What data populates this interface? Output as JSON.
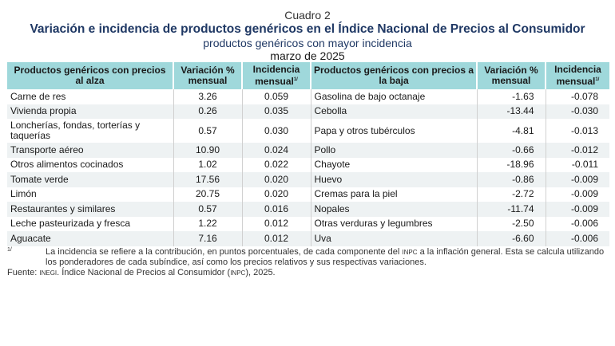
{
  "header": {
    "cuadro": "Cuadro 2",
    "title": "Variación e incidencia de productos genéricos en el Índice Nacional de Precios al Consumidor",
    "subtitle": "productos genéricos con mayor incidencia",
    "date": "marzo de 2025"
  },
  "columns": {
    "up_product": "Productos genéricos con precios al alza",
    "up_variation": "Variación % mensual",
    "up_incidence": "Incidencia mensual",
    "down_product": "Productos genéricos con precios a la baja",
    "down_variation": "Variación % mensual",
    "down_incidence": "Incidencia mensual",
    "footnote_mark": "1/"
  },
  "rows": [
    {
      "up": "Carne de res",
      "up_var": "3.26",
      "up_inc": "0.059",
      "down": "Gasolina de bajo octanaje",
      "down_var": "-1.63",
      "down_inc": "-0.078"
    },
    {
      "up": "Vivienda propia",
      "up_var": "0.26",
      "up_inc": "0.035",
      "down": "Cebolla",
      "down_var": "-13.44",
      "down_inc": "-0.030"
    },
    {
      "up": "Loncherías, fondas, torterías y taquerías",
      "up_var": "0.57",
      "up_inc": "0.030",
      "down": "Papa y otros tubérculos",
      "down_var": "-4.81",
      "down_inc": "-0.013"
    },
    {
      "up": "Transporte aéreo",
      "up_var": "10.90",
      "up_inc": "0.024",
      "down": "Pollo",
      "down_var": "-0.66",
      "down_inc": "-0.012"
    },
    {
      "up": "Otros alimentos cocinados",
      "up_var": "1.02",
      "up_inc": "0.022",
      "down": "Chayote",
      "down_var": "-18.96",
      "down_inc": "-0.011"
    },
    {
      "up": "Tomate verde",
      "up_var": "17.56",
      "up_inc": "0.020",
      "down": "Huevo",
      "down_var": "-0.86",
      "down_inc": "-0.009"
    },
    {
      "up": "Limón",
      "up_var": "20.75",
      "up_inc": "0.020",
      "down": "Cremas para la piel",
      "down_var": "-2.72",
      "down_inc": "-0.009"
    },
    {
      "up": "Restaurantes y similares",
      "up_var": "0.57",
      "up_inc": "0.016",
      "down": "Nopales",
      "down_var": "-11.74",
      "down_inc": "-0.009"
    },
    {
      "up": "Leche pasteurizada y fresca",
      "up_var": "1.22",
      "up_inc": "0.012",
      "down": "Otras verduras y legumbres",
      "down_var": "-2.50",
      "down_inc": "-0.006"
    },
    {
      "up": "Aguacate",
      "up_var": "7.16",
      "up_inc": "0.012",
      "down": "Uva",
      "down_var": "-6.60",
      "down_inc": "-0.006"
    }
  ],
  "notes": {
    "mark": "1/",
    "note1_a": "La incidencia se refiere a la contribución, en puntos porcentuales, de cada componente del ",
    "note1_inpc": "INPC",
    "note1_b": " a la inflación general. Esta se calcula utilizando los ponderadores de cada subíndice, así como los precios relativos y sus respectivas variaciones.",
    "source_a": "Fuente: ",
    "source_inegi": "INEGI",
    "source_b": ". Índice Nacional de Precios al Consumidor (",
    "source_inpc": "INPC",
    "source_c": "), 2025."
  }
}
